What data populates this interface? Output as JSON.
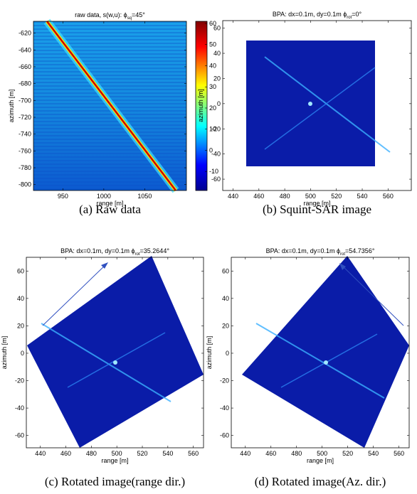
{
  "chart_data": [
    {
      "type": "image",
      "title": [
        "raw data, s(w,u): ϕ",
        "sq",
        "=45°"
      ],
      "xlabel": "range [m]",
      "ylabel": "azimuth [m]",
      "xlim": [
        914,
        1101
      ],
      "xticks": [
        950,
        1000,
        1050
      ],
      "ylim": [
        -807,
        -606
      ],
      "yticks": [
        -800,
        -780,
        -760,
        -740,
        -720,
        -700,
        -680,
        -660,
        -640,
        -620
      ],
      "colorbar": {
        "clim": [
          -19,
          61
        ],
        "ticks": [
          -10,
          0,
          10,
          20,
          30,
          40,
          50,
          60
        ]
      },
      "caption": "(a)  Raw data"
    },
    {
      "type": "image",
      "title": [
        "BPA: dx=0.1m, dy=0.1m ϕ",
        "rot",
        "=0°"
      ],
      "xlabel": "range [m]",
      "ylabel": "azimuth [m]",
      "xlim": [
        432,
        578
      ],
      "xticks": [
        440,
        460,
        480,
        500,
        520,
        540,
        560
      ],
      "ylim": [
        -69,
        66
      ],
      "yticks": [
        -60,
        -40,
        -20,
        0,
        20,
        40,
        60
      ],
      "caption": "(b)  Squint-SAR image"
    },
    {
      "type": "image",
      "title": [
        "BPA: dx=0.1m, dy=0.1m ϕ",
        "rot",
        "=35.2644°"
      ],
      "xlabel": "range [m]",
      "ylabel": "azimuth [m]",
      "xlim": [
        429,
        568
      ],
      "xticks": [
        440,
        460,
        480,
        500,
        520,
        540,
        560
      ],
      "ylim": [
        -69,
        70
      ],
      "yticks": [
        -60,
        -40,
        -20,
        0,
        20,
        40,
        60
      ],
      "caption": "(c)  Rotated image(range dir.)"
    },
    {
      "type": "image",
      "title": [
        "BPA: dx=0.1m, dy=0.1m ϕ",
        "rot",
        "=54.7356°"
      ],
      "xlabel": "range [m]",
      "ylabel": "azimuth [m]",
      "xlim": [
        429,
        568
      ],
      "xticks": [
        440,
        460,
        480,
        500,
        520,
        540,
        560
      ],
      "ylim": [
        -69,
        70
      ],
      "yticks": [
        -60,
        -40,
        -20,
        0,
        20,
        40,
        60
      ],
      "caption": "(d)  Rotated image(Az. dir.)"
    }
  ]
}
